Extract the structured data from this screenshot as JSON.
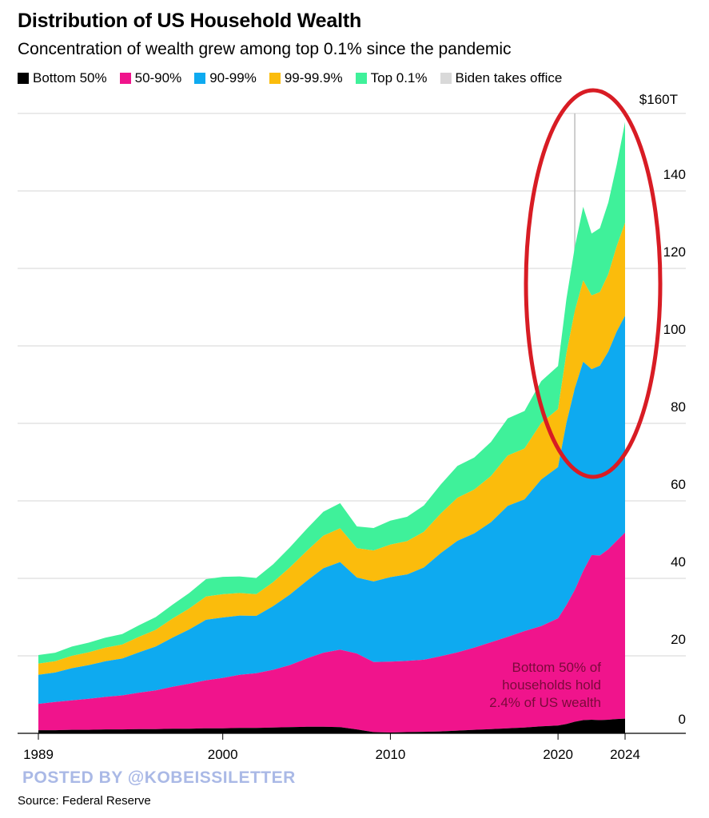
{
  "title": "Distribution of US Household Wealth",
  "subtitle": "Concentration of wealth grew among top 0.1% since the pandemic",
  "watermark": "POSTED BY @KOBEISSILETTER",
  "source": "Source: Federal Reserve",
  "annotation": [
    "Bottom 50% of",
    "households hold",
    "2.4% of US wealth"
  ],
  "colors": {
    "bottom50": "#000000",
    "p50_90": "#f0148c",
    "p90_99": "#0eaaf0",
    "p99_999": "#fbbc0c",
    "top01": "#3ff19a",
    "biden": "#d9d9d9",
    "highlight_ellipse": "#d81c24",
    "annotation_text": "#7a0a3a"
  },
  "chart_data": {
    "type": "area",
    "stacked": true,
    "title": "Distribution of US Household Wealth",
    "xlabel": "",
    "ylabel": "",
    "ylim": [
      0,
      160
    ],
    "y_unit": "trillion USD",
    "y_ticks": [
      "0",
      "20",
      "40",
      "60",
      "80",
      "100",
      "120",
      "140",
      "$160T"
    ],
    "y_tick_values": [
      0,
      20,
      40,
      60,
      80,
      100,
      120,
      140,
      160
    ],
    "x_ticks": [
      "1989",
      "2000",
      "2010",
      "2020",
      "2024"
    ],
    "x_tick_values": [
      1989,
      2000,
      2010,
      2020,
      2024
    ],
    "grid": true,
    "legend": "top",
    "marker": {
      "label": "Biden takes office",
      "x": 2021
    },
    "x": [
      1989,
      1990,
      1991,
      1992,
      1993,
      1994,
      1995,
      1996,
      1997,
      1998,
      1999,
      2000,
      2001,
      2002,
      2003,
      2004,
      2005,
      2006,
      2007,
      2008,
      2009,
      2010,
      2011,
      2012,
      2013,
      2014,
      2015,
      2016,
      2017,
      2018,
      2019,
      2020,
      2020.5,
      2021,
      2021.5,
      2022,
      2022.5,
      2023,
      2023.5,
      2024
    ],
    "series": [
      {
        "name": "Bottom 50%",
        "values": [
          0.8,
          0.8,
          0.9,
          0.9,
          1.0,
          1.0,
          1.1,
          1.1,
          1.2,
          1.2,
          1.3,
          1.3,
          1.4,
          1.4,
          1.5,
          1.6,
          1.7,
          1.7,
          1.6,
          1.0,
          0.3,
          0.2,
          0.3,
          0.4,
          0.5,
          0.7,
          0.9,
          1.1,
          1.3,
          1.5,
          1.8,
          2.0,
          2.4,
          3.0,
          3.4,
          3.5,
          3.4,
          3.5,
          3.7,
          3.8
        ]
      },
      {
        "name": "50-90%",
        "values": [
          6.8,
          7.3,
          7.6,
          8.0,
          8.4,
          8.8,
          9.4,
          10.0,
          10.8,
          11.6,
          12.4,
          13.0,
          13.7,
          14.1,
          14.9,
          16.0,
          17.6,
          19.1,
          20.0,
          19.6,
          18.1,
          18.3,
          18.4,
          18.6,
          19.4,
          20.2,
          21.2,
          22.4,
          23.6,
          24.9,
          25.9,
          27.7,
          30.7,
          34.0,
          38.5,
          42.5,
          42.5,
          44.0,
          46.0,
          48.0
        ]
      },
      {
        "name": "90-99%",
        "values": [
          7.5,
          7.6,
          8.3,
          8.7,
          9.2,
          9.5,
          10.4,
          11.3,
          12.7,
          14.0,
          15.6,
          15.6,
          15.3,
          14.8,
          16.4,
          18.2,
          20.0,
          21.8,
          22.6,
          19.6,
          20.8,
          21.8,
          22.3,
          23.8,
          26.6,
          28.8,
          29.5,
          31.0,
          33.8,
          34.0,
          37.8,
          39.0,
          47.0,
          52.0,
          54.0,
          48.0,
          49.0,
          51.0,
          54.0,
          56.0
        ]
      },
      {
        "name": "99-99.9%",
        "values": [
          2.9,
          2.9,
          3.2,
          3.3,
          3.5,
          3.6,
          4.0,
          4.3,
          4.9,
          5.4,
          6.0,
          6.0,
          5.8,
          5.6,
          6.2,
          7.0,
          7.7,
          8.4,
          8.7,
          7.6,
          8.0,
          8.4,
          8.6,
          9.2,
          10.2,
          11.1,
          11.3,
          11.9,
          13.0,
          13.1,
          14.6,
          15.0,
          18.0,
          20.0,
          21.0,
          19.0,
          19.0,
          20.0,
          22.0,
          24.0
        ]
      },
      {
        "name": "Top 0.1%",
        "values": [
          2.2,
          2.2,
          2.4,
          2.5,
          2.6,
          2.7,
          3.0,
          3.3,
          3.6,
          4.0,
          4.5,
          4.5,
          4.3,
          4.2,
          4.6,
          5.2,
          5.7,
          6.2,
          6.5,
          5.6,
          5.8,
          6.2,
          6.3,
          6.8,
          7.5,
          8.2,
          8.3,
          8.8,
          9.6,
          9.7,
          10.8,
          11.1,
          14.0,
          16.5,
          19.0,
          16.0,
          16.5,
          18.5,
          21.0,
          26.0
        ]
      }
    ]
  }
}
